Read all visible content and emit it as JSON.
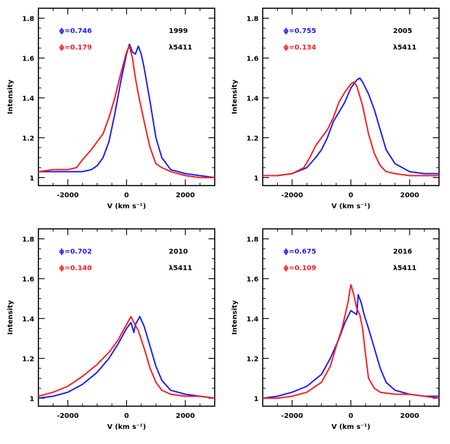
{
  "chart_data": [
    {
      "type": "line",
      "title": "",
      "xlabel": "V (km s⁻¹)",
      "ylabel": "Intensity",
      "xlim": [
        -3000,
        3000
      ],
      "ylim": [
        0.96,
        1.85
      ],
      "xticks": [
        -2000,
        0,
        2000
      ],
      "yticks": [
        1,
        1.2,
        1.4,
        1.6,
        1.8
      ],
      "xticklabels": [
        "-2000",
        "0",
        "2000"
      ],
      "yticklabels": [
        "1",
        "1.2",
        "1.4",
        "1.6",
        "1.8"
      ],
      "annotations": [
        "1999",
        "λ5411"
      ],
      "series": [
        {
          "name": "ϕ=0.746",
          "color": "#1a1aff",
          "x": [
            -3000,
            -2500,
            -2000,
            -1500,
            -1200,
            -1000,
            -800,
            -600,
            -400,
            -200,
            0,
            100,
            200,
            300,
            400,
            500,
            600,
            800,
            1000,
            1200,
            1500,
            2000,
            2500,
            3000
          ],
          "y": [
            1.03,
            1.03,
            1.03,
            1.03,
            1.04,
            1.06,
            1.1,
            1.18,
            1.32,
            1.48,
            1.62,
            1.67,
            1.63,
            1.62,
            1.66,
            1.62,
            1.55,
            1.38,
            1.2,
            1.1,
            1.04,
            1.02,
            1.01,
            1.0
          ]
        },
        {
          "name": "ϕ=0.179",
          "color": "#ff1a1a",
          "x": [
            -3000,
            -2500,
            -2000,
            -1700,
            -1500,
            -1200,
            -1000,
            -800,
            -600,
            -400,
            -200,
            0,
            100,
            200,
            300,
            400,
            500,
            600,
            800,
            1000,
            1200,
            1500,
            2000,
            2500,
            3000
          ],
          "y": [
            1.03,
            1.04,
            1.04,
            1.05,
            1.09,
            1.14,
            1.18,
            1.22,
            1.3,
            1.4,
            1.52,
            1.63,
            1.66,
            1.6,
            1.5,
            1.42,
            1.35,
            1.28,
            1.15,
            1.07,
            1.05,
            1.03,
            1.01,
            1.0,
            1.0
          ]
        }
      ]
    },
    {
      "type": "line",
      "title": "",
      "xlabel": "V (km s⁻¹)",
      "ylabel": "Intensity",
      "xlim": [
        -3000,
        3000
      ],
      "ylim": [
        0.96,
        1.85
      ],
      "xticks": [
        -2000,
        0,
        2000
      ],
      "yticks": [
        1,
        1.2,
        1.4,
        1.6,
        1.8
      ],
      "xticklabels": [
        "-2000",
        "0",
        "2000"
      ],
      "yticklabels": [
        "1",
        "1.2",
        "1.4",
        "1.6",
        "1.8"
      ],
      "annotations": [
        "2005",
        "λ5411"
      ],
      "series": [
        {
          "name": "ϕ=0.755",
          "color": "#1a1aff",
          "x": [
            -3000,
            -2500,
            -2000,
            -1500,
            -1200,
            -1000,
            -800,
            -600,
            -400,
            -200,
            0,
            200,
            300,
            400,
            600,
            800,
            1000,
            1200,
            1500,
            2000,
            2500,
            3000
          ],
          "y": [
            1.01,
            1.01,
            1.02,
            1.05,
            1.1,
            1.14,
            1.2,
            1.28,
            1.33,
            1.38,
            1.45,
            1.49,
            1.5,
            1.48,
            1.42,
            1.34,
            1.24,
            1.14,
            1.07,
            1.03,
            1.02,
            1.02
          ]
        },
        {
          "name": "ϕ=0.134",
          "color": "#ff1a1a",
          "x": [
            -3000,
            -2500,
            -2000,
            -1600,
            -1400,
            -1200,
            -1000,
            -800,
            -600,
            -400,
            -200,
            0,
            100,
            200,
            400,
            600,
            800,
            1000,
            1200,
            1500,
            2000,
            2500,
            3000
          ],
          "y": [
            1.01,
            1.01,
            1.02,
            1.05,
            1.1,
            1.16,
            1.2,
            1.24,
            1.3,
            1.38,
            1.43,
            1.47,
            1.48,
            1.46,
            1.36,
            1.22,
            1.12,
            1.06,
            1.03,
            1.02,
            1.01,
            1.01,
            1.01
          ]
        }
      ]
    },
    {
      "type": "line",
      "title": "",
      "xlabel": "V (km s⁻¹)",
      "ylabel": "Intensity",
      "xlim": [
        -3000,
        3000
      ],
      "ylim": [
        0.96,
        1.85
      ],
      "xticks": [
        -2000,
        0,
        2000
      ],
      "yticks": [
        1,
        1.2,
        1.4,
        1.6,
        1.8
      ],
      "xticklabels": [
        "-2000",
        "0",
        "2000"
      ],
      "yticklabels": [
        "1",
        "1.2",
        "1.4",
        "1.6",
        "1.8"
      ],
      "annotations": [
        "2010",
        "λ5411"
      ],
      "series": [
        {
          "name": "ϕ=0.702",
          "color": "#1a1aff",
          "x": [
            -3000,
            -2500,
            -2000,
            -1500,
            -1000,
            -600,
            -300,
            0,
            150,
            250,
            300,
            450,
            600,
            800,
            1000,
            1200,
            1500,
            2000,
            2500,
            3000
          ],
          "y": [
            1.0,
            1.01,
            1.03,
            1.07,
            1.13,
            1.2,
            1.27,
            1.35,
            1.38,
            1.33,
            1.37,
            1.41,
            1.36,
            1.26,
            1.16,
            1.09,
            1.04,
            1.02,
            1.01,
            1.0
          ]
        },
        {
          "name": "ϕ=0.140",
          "color": "#ff1a1a",
          "x": [
            -3000,
            -2500,
            -2000,
            -1500,
            -1000,
            -600,
            -300,
            0,
            150,
            250,
            400,
            600,
            800,
            1000,
            1200,
            1500,
            2000,
            2500,
            3000
          ],
          "y": [
            1.01,
            1.03,
            1.06,
            1.11,
            1.17,
            1.23,
            1.29,
            1.37,
            1.41,
            1.38,
            1.34,
            1.25,
            1.15,
            1.08,
            1.04,
            1.02,
            1.01,
            1.01,
            1.0
          ]
        }
      ]
    },
    {
      "type": "line",
      "title": "",
      "xlabel": "V (km s⁻¹)",
      "ylabel": "Intensity",
      "xlim": [
        -3000,
        3000
      ],
      "ylim": [
        0.96,
        1.85
      ],
      "xticks": [
        -2000,
        0,
        2000
      ],
      "yticks": [
        1,
        1.2,
        1.4,
        1.6,
        1.8
      ],
      "xticklabels": [
        "-2000",
        "0",
        "2000"
      ],
      "yticklabels": [
        "1",
        "1.2",
        "1.4",
        "1.6",
        "1.8"
      ],
      "annotations": [
        "2016",
        "λ5411"
      ],
      "series": [
        {
          "name": "ϕ=0.675",
          "color": "#1a1aff",
          "x": [
            -3000,
            -2500,
            -2000,
            -1500,
            -1000,
            -700,
            -400,
            -200,
            0,
            200,
            250,
            350,
            450,
            600,
            800,
            1000,
            1200,
            1500,
            2000,
            2500,
            3000
          ],
          "y": [
            1.0,
            1.01,
            1.03,
            1.06,
            1.12,
            1.2,
            1.3,
            1.38,
            1.44,
            1.42,
            1.52,
            1.48,
            1.42,
            1.35,
            1.25,
            1.15,
            1.08,
            1.04,
            1.02,
            1.01,
            1.01
          ]
        },
        {
          "name": "ϕ=0.109",
          "color": "#ff1a1a",
          "x": [
            -3000,
            -2500,
            -2000,
            -1500,
            -1000,
            -700,
            -500,
            -300,
            -100,
            0,
            100,
            200,
            300,
            400,
            500,
            600,
            800,
            1000,
            1500,
            2000,
            2500,
            3000
          ],
          "y": [
            1.0,
            1.0,
            1.01,
            1.03,
            1.08,
            1.16,
            1.26,
            1.35,
            1.48,
            1.57,
            1.52,
            1.45,
            1.42,
            1.35,
            1.22,
            1.1,
            1.05,
            1.03,
            1.02,
            1.02,
            1.01,
            1.0
          ]
        }
      ]
    }
  ]
}
